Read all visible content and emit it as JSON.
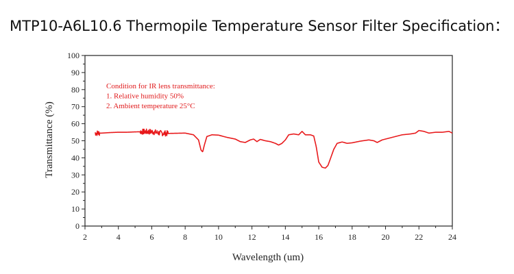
{
  "title": "MTP10-A6L10.6 Thermopile Temperature Sensor Filter Specification：",
  "chart_data": {
    "type": "line",
    "xlabel": "Wavelength (um)",
    "ylabel": "Transmittance (%)",
    "xlim": [
      2,
      24
    ],
    "ylim": [
      0,
      100
    ],
    "x_ticks": [
      "2",
      "4",
      "6",
      "8",
      "10",
      "12",
      "14",
      "16",
      "18",
      "20",
      "22",
      "24"
    ],
    "y_ticks": [
      "0",
      "10",
      "20",
      "30",
      "40",
      "50",
      "60",
      "70",
      "80",
      "90",
      "100"
    ],
    "grid": false,
    "line_color": "#e8191b",
    "annotation": [
      "Condition for IR lens transmittance:",
      "1. Relative humidity 50%",
      "2. Ambient temperature 25°C"
    ],
    "series": [
      {
        "x": [
          2.6,
          3.0,
          3.5,
          4.0,
          4.5,
          5.0,
          5.5,
          6.0,
          6.5,
          7.0,
          7.5,
          8.0,
          8.5,
          8.8,
          8.95,
          9.05,
          9.15,
          9.3,
          9.6,
          10.0,
          10.5,
          11.0,
          11.3,
          11.6,
          11.9,
          12.1,
          12.3,
          12.5,
          12.8,
          13.1,
          13.4,
          13.6,
          13.8,
          14.0,
          14.2,
          14.5,
          14.8,
          15.0,
          15.2,
          15.5,
          15.7,
          15.85,
          16.0,
          16.2,
          16.4,
          16.55,
          16.7,
          16.9,
          17.1,
          17.4,
          17.7,
          18.0,
          18.5,
          19.0,
          19.3,
          19.5,
          19.8,
          20.2,
          20.6,
          21.0,
          21.5,
          21.8,
          22.0,
          22.3,
          22.6,
          23.0,
          23.4,
          23.8,
          24.0
        ],
        "y": [
          54.5,
          54.5,
          54.8,
          55.0,
          55.0,
          55.2,
          55.3,
          55.3,
          54.5,
          54.3,
          54.4,
          54.5,
          53.5,
          50.5,
          44.5,
          43.5,
          47.5,
          52.5,
          53.5,
          53.3,
          52.0,
          51.0,
          49.5,
          49.0,
          50.5,
          51.0,
          49.5,
          50.8,
          50.0,
          49.5,
          48.5,
          47.5,
          48.5,
          50.5,
          53.5,
          54.0,
          53.5,
          55.5,
          53.5,
          53.5,
          52.8,
          46.5,
          37.5,
          34.5,
          34.0,
          35.5,
          39.5,
          45.0,
          48.5,
          49.3,
          48.5,
          48.8,
          49.8,
          50.5,
          50.0,
          49.0,
          50.5,
          51.5,
          52.5,
          53.5,
          54.0,
          54.5,
          56.0,
          55.5,
          54.5,
          55.0,
          55.0,
          55.5,
          54.5
        ],
        "noisy_ranges": [
          [
            2.6,
            2.9
          ],
          [
            5.3,
            7.0
          ]
        ]
      }
    ]
  }
}
